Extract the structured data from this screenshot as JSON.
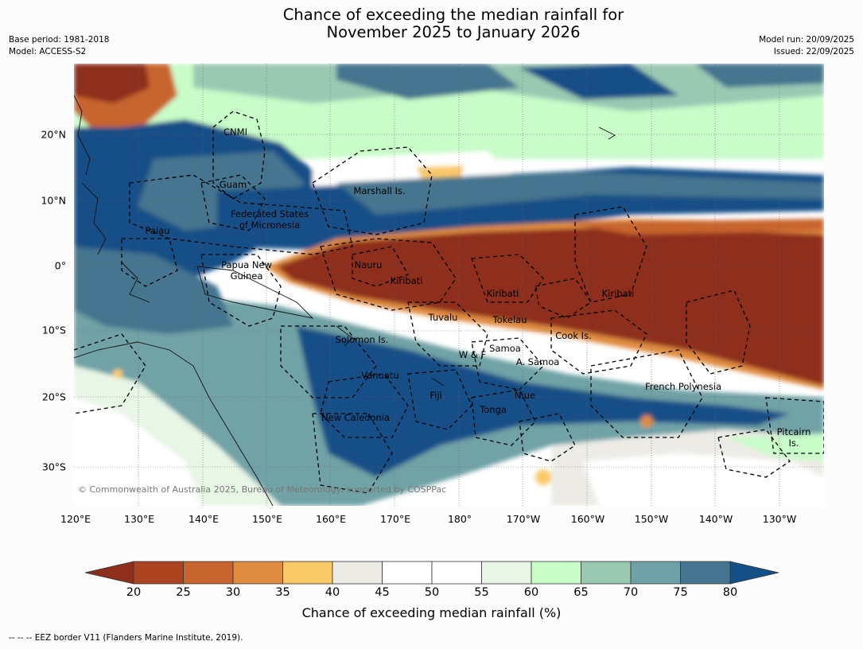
{
  "title": {
    "line1": "Chance of exceeding the median rainfall for",
    "line2": "November 2025 to January 2026"
  },
  "meta": {
    "base_period": "Base period: 1981-2018",
    "model": "Model: ACCESS-S2",
    "model_run": "Model run: 20/09/2025",
    "issued": "Issued: 22/09/2025"
  },
  "axes": {
    "lat_labels": [
      "20°N",
      "10°N",
      "0°",
      "10°S",
      "20°S",
      "30°S"
    ],
    "lon_labels": [
      "120°E",
      "130°E",
      "140°E",
      "150°E",
      "160°E",
      "170°E",
      "180°",
      "170°W",
      "160°W",
      "150°W",
      "140°W",
      "130°W"
    ]
  },
  "regions": {
    "cnmi": "CNMI",
    "guam": "Guam",
    "marshall": "Marshall Is.",
    "fsm_line1": "Federated States",
    "fsm_line2": "of Micronesia",
    "palau": "Palau",
    "png_line1": "Papua New",
    "png_line2": "Guinea",
    "nauru": "Nauru",
    "kiribati_w": "Kiribati",
    "kiribati_c": "Kiribati",
    "kiribati_e": "Kiribati",
    "tuvalu": "Tuvalu",
    "tokelau": "Tokelau",
    "cook": "Cook Is.",
    "solomon": "Solomon Is.",
    "samoa": "Samoa",
    "wf": "W & F",
    "asamoa": "A. Samoa",
    "vanuatu": "Vanuatu",
    "fiji": "Fiji",
    "niue": "Niue",
    "tonga": "Tonga",
    "new_caledonia": "New Caledonia",
    "french_polynesia": "French Polynesia",
    "pitcairn_line1": "Pitcairn",
    "pitcairn_line2": "Is."
  },
  "copyright": "© Commonwealth of Australia 2025, Bureau of Meteorology, supported by COSPPac",
  "colorbar": {
    "ticks": [
      "20",
      "25",
      "30",
      "35",
      "40",
      "45",
      "50",
      "55",
      "60",
      "65",
      "70",
      "75",
      "80"
    ],
    "label": "Chance of exceeding median rainfall (%)",
    "colors": {
      "below20": "#8e2f1d",
      "b20_25": "#ad4421",
      "b25_30": "#c8652f",
      "b30_35": "#e08c40",
      "b35_40": "#f9c967",
      "b40_45": "#edebe6",
      "b45_50": "#ffffff",
      "b50_55": "#ffffff",
      "b55_60": "#e8f6e6",
      "b60_65": "#c8fcc8",
      "b65_70": "#9ac9b2",
      "b70_75": "#6fa2a6",
      "b75_80": "#45748f",
      "above80": "#154f87"
    }
  },
  "footnote": "--  --  -- EEZ border V11 (Flanders Marine Institute, 2019)."
}
